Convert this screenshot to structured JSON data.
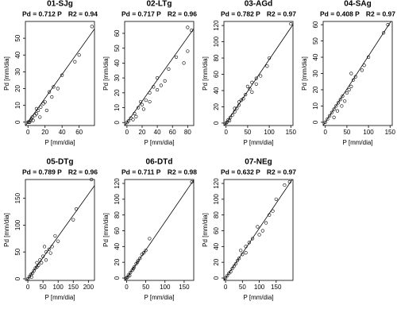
{
  "chart_data": [
    {
      "type": "scatter",
      "title": "01-SJg",
      "fit": {
        "value": 0.712,
        "label": "Pd = 0.712 P"
      },
      "r2": {
        "value": 0.94,
        "label": "R2 = 0.94"
      },
      "x_label": "P [mm/dia]",
      "y_label": "Pd [mm/dia]",
      "xlim": [
        -3,
        78
      ],
      "xticks": [
        0,
        20,
        40,
        60
      ],
      "ylim": [
        -2,
        60
      ],
      "yticks": [
        0,
        10,
        20,
        30,
        40,
        50
      ],
      "x": [
        75,
        60,
        55,
        40,
        35,
        30,
        28,
        20,
        15,
        12,
        10,
        8,
        5,
        3,
        2,
        1,
        0,
        25,
        18,
        22,
        6,
        4,
        10,
        14
      ],
      "y": [
        57,
        40,
        36,
        28,
        20,
        21,
        15,
        12,
        9,
        7,
        5,
        4,
        3,
        1,
        0,
        0,
        0,
        18,
        11,
        7,
        1,
        2,
        8,
        3
      ]
    },
    {
      "type": "scatter",
      "title": "02-LTg",
      "fit": {
        "value": 0.717,
        "label": "Pd = 0.717 P"
      },
      "r2": {
        "value": 0.96,
        "label": "R2 = 0.96"
      },
      "x_label": "P [mm/dia]",
      "y_label": "Pd [mm/dia]",
      "xlim": [
        -3,
        88
      ],
      "xticks": [
        0,
        20,
        40,
        60,
        80
      ],
      "ylim": [
        -2,
        68
      ],
      "yticks": [
        0,
        10,
        20,
        30,
        40,
        50,
        60
      ],
      "x": [
        80,
        85,
        80,
        75,
        65,
        55,
        50,
        45,
        40,
        35,
        30,
        25,
        20,
        15,
        10,
        5,
        2,
        0,
        30,
        22,
        12,
        8,
        40,
        18
      ],
      "y": [
        64,
        62,
        48,
        40,
        44,
        36,
        28,
        25,
        22,
        24,
        20,
        15,
        12,
        10,
        6,
        3,
        1,
        0,
        14,
        9,
        4,
        2,
        30,
        14
      ]
    },
    {
      "type": "scatter",
      "title": "03-AGd",
      "fit": {
        "value": 0.782,
        "label": "Pd = 0.782 P"
      },
      "r2": {
        "value": 0.97,
        "label": "R2 = 0.97"
      },
      "x_label": "P [mm/dia]",
      "y_label": "Pd [mm/dia]",
      "xlim": [
        -5,
        155
      ],
      "xticks": [
        0,
        50,
        100,
        150
      ],
      "ylim": [
        -3,
        125
      ],
      "yticks": [
        0,
        20,
        40,
        60,
        80,
        100,
        120
      ],
      "x": [
        150,
        100,
        95,
        80,
        70,
        60,
        50,
        45,
        40,
        35,
        30,
        25,
        20,
        15,
        10,
        5,
        2,
        0,
        60,
        70,
        55,
        30,
        8,
        20
      ],
      "y": [
        122,
        80,
        70,
        58,
        55,
        50,
        45,
        35,
        30,
        28,
        22,
        18,
        14,
        10,
        7,
        4,
        1,
        0,
        38,
        48,
        42,
        26,
        3,
        18
      ]
    },
    {
      "type": "scatter",
      "title": "04-SAg",
      "fit": {
        "value": 0.408,
        "label": "Pd = 0.408 P"
      },
      "r2": {
        "value": 0.97,
        "label": "R2 = 0.97"
      },
      "x_label": "P [mm/dia]",
      "y_label": "Pd [mm/dia]",
      "xlim": [
        -5,
        155
      ],
      "xticks": [
        0,
        50,
        100,
        150
      ],
      "ylim": [
        -2,
        62
      ],
      "yticks": [
        0,
        10,
        20,
        30,
        40,
        50,
        60
      ],
      "x": [
        145,
        135,
        100,
        90,
        85,
        70,
        60,
        55,
        50,
        40,
        35,
        30,
        25,
        20,
        15,
        10,
        5,
        0,
        65,
        45,
        38,
        28,
        60,
        20
      ],
      "y": [
        60,
        55,
        40,
        35,
        32,
        28,
        22,
        20,
        18,
        16,
        14,
        12,
        10,
        8,
        6,
        4,
        2,
        0,
        26,
        13,
        10,
        7,
        30,
        3
      ]
    },
    {
      "type": "scatter",
      "title": "05-DTg",
      "fit": {
        "value": 0.789,
        "label": "Pd = 0.789 P"
      },
      "r2": {
        "value": 0.96,
        "label": "R2 = 0.96"
      },
      "x_label": "P [mm/dia]",
      "y_label": "Pd [mm/dia]",
      "xlim": [
        -8,
        220
      ],
      "xticks": [
        0,
        50,
        100,
        150,
        200
      ],
      "ylim": [
        -3,
        185
      ],
      "yticks": [
        0,
        50,
        100,
        150
      ],
      "x": [
        210,
        160,
        150,
        100,
        90,
        80,
        70,
        60,
        50,
        45,
        40,
        35,
        30,
        25,
        20,
        15,
        10,
        5,
        0,
        60,
        75,
        55,
        30,
        12
      ],
      "y": [
        185,
        130,
        110,
        70,
        80,
        60,
        55,
        50,
        42,
        30,
        35,
        25,
        22,
        20,
        15,
        10,
        8,
        4,
        0,
        35,
        48,
        60,
        30,
        3
      ]
    },
    {
      "type": "scatter",
      "title": "06-DTd",
      "fit": {
        "value": 0.711,
        "label": "Pd = 0.711 P"
      },
      "r2": {
        "value": 0.98,
        "label": "R2 = 0.98"
      },
      "x_label": "P [mm/dia]",
      "y_label": "Pd [mm/dia]",
      "xlim": [
        -5,
        175
      ],
      "xticks": [
        0,
        50,
        100,
        150
      ],
      "ylim": [
        -3,
        125
      ],
      "yticks": [
        0,
        20,
        40,
        60,
        80,
        100,
        120
      ],
      "x": [
        170,
        60,
        50,
        45,
        40,
        35,
        30,
        25,
        20,
        15,
        10,
        5,
        2,
        0,
        8,
        18,
        28
      ],
      "y": [
        122,
        50,
        35,
        32,
        30,
        25,
        22,
        18,
        14,
        10,
        7,
        4,
        1,
        0,
        3,
        12,
        20
      ]
    },
    {
      "type": "scatter",
      "title": "07-NEg",
      "fit": {
        "value": 0.632,
        "label": "Pd = 0.632 P"
      },
      "r2": {
        "value": 0.97,
        "label": "R2 = 0.97"
      },
      "x_label": "P [mm/dia]",
      "y_label": "Pd [mm/dia]",
      "xlim": [
        -5,
        200
      ],
      "xticks": [
        0,
        50,
        100,
        150
      ],
      "ylim": [
        -3,
        125
      ],
      "yticks": [
        0,
        20,
        40,
        60,
        80,
        100,
        120
      ],
      "x": [
        190,
        175,
        150,
        140,
        130,
        120,
        110,
        100,
        95,
        80,
        70,
        60,
        50,
        40,
        35,
        30,
        25,
        20,
        15,
        10,
        5,
        0,
        60,
        45
      ],
      "y": [
        122,
        118,
        100,
        85,
        80,
        70,
        60,
        55,
        65,
        50,
        45,
        40,
        30,
        25,
        22,
        18,
        15,
        12,
        8,
        6,
        3,
        0,
        32,
        35
      ]
    }
  ]
}
